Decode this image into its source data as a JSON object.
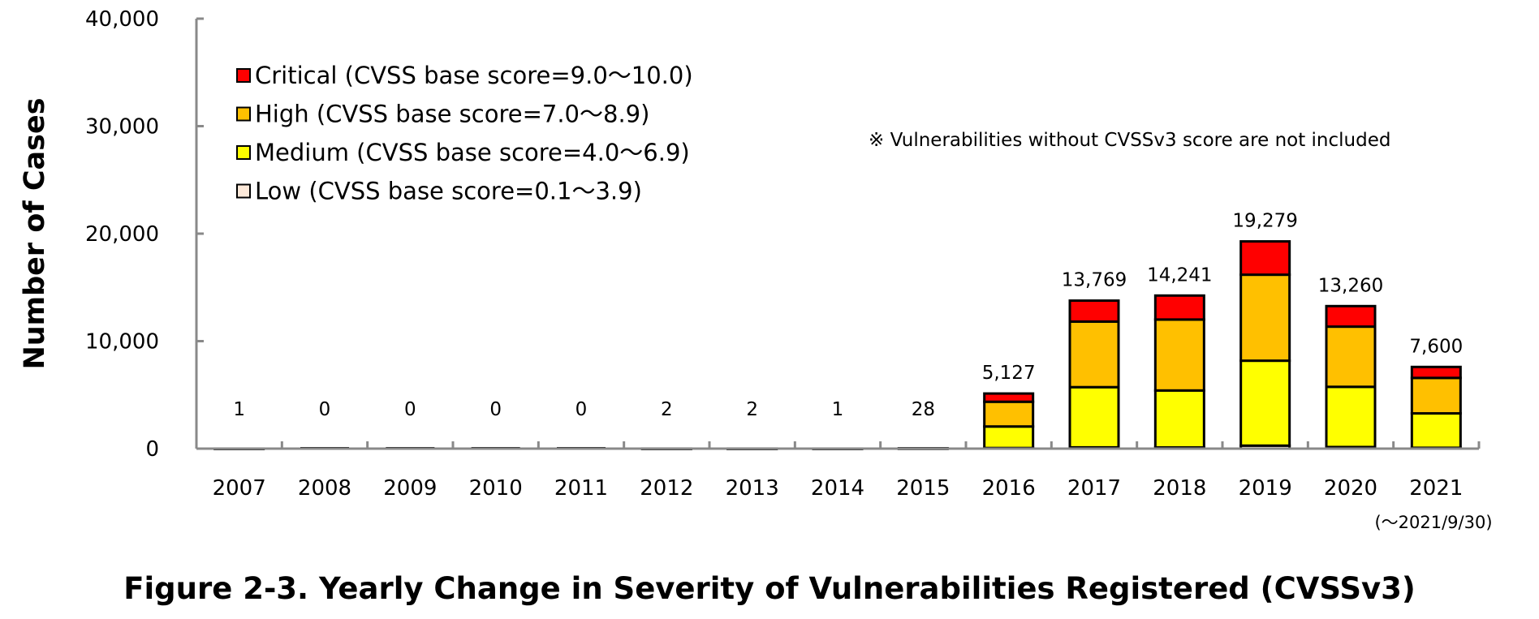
{
  "chart_data": {
    "type": "bar",
    "stacked": true,
    "title": "Figure 2-3. Yearly Change in Severity of Vulnerabilities Registered (CVSSv3)",
    "xlabel": "",
    "ylabel": "Number of Cases",
    "ylim": [
      0,
      40000
    ],
    "yticks": [
      "0",
      "10,000",
      "20,000",
      "30,000",
      "40,000"
    ],
    "categories": [
      "2007",
      "2008",
      "2009",
      "2010",
      "2011",
      "2012",
      "2013",
      "2014",
      "2015",
      "2016",
      "2017",
      "2018",
      "2019",
      "2020",
      "2021"
    ],
    "category_note": "(～2021/9/30)",
    "grid": false,
    "legend_position": "top-left",
    "series": [
      {
        "name": "Low (CVSS base score=0.1～3.9)",
        "color": "#fde9d9",
        "values": [
          0,
          0,
          0,
          0,
          0,
          0,
          0,
          0,
          0,
          60,
          120,
          110,
          280,
          150,
          80
        ]
      },
      {
        "name": "Medium (CVSS base score=4.0～6.9)",
        "color": "#ffff00",
        "values": [
          1,
          0,
          0,
          0,
          0,
          1,
          1,
          1,
          20,
          2000,
          5600,
          5300,
          7900,
          5600,
          3200
        ]
      },
      {
        "name": "High (CVSS base score=7.0～8.9)",
        "color": "#ffc000",
        "values": [
          0,
          0,
          0,
          0,
          0,
          1,
          1,
          0,
          8,
          2300,
          6100,
          6600,
          8000,
          5600,
          3300
        ]
      },
      {
        "name": "Critical (CVSS base score=9.0～10.0)",
        "color": "#ff0000",
        "values": [
          0,
          0,
          0,
          0,
          0,
          0,
          0,
          0,
          0,
          767,
          1949,
          2231,
          3099,
          1910,
          1020
        ]
      }
    ],
    "legend_order": [
      3,
      2,
      1,
      0
    ],
    "totals": [
      "1",
      "0",
      "0",
      "0",
      "0",
      "2",
      "2",
      "1",
      "28",
      "5,127",
      "13,769",
      "14,241",
      "19,279",
      "13,260",
      "7,600"
    ],
    "note": "※ Vulnerabilities without CVSSv3 score are not included"
  }
}
